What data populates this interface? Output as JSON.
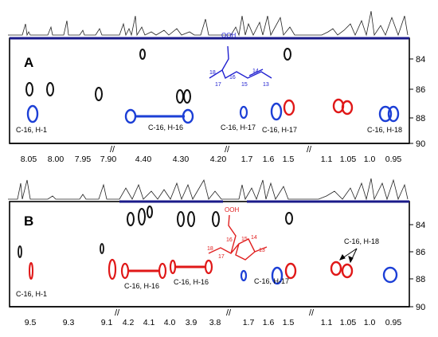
{
  "panels": [
    {
      "id": "A",
      "panel_letter": "A",
      "x_tick_labels": [
        "8.05",
        "8.00",
        "7.95",
        "7.90",
        "4.40",
        "4.30",
        "4.20",
        "1.7",
        "1.6",
        "1.5",
        "1.1",
        "1.05",
        "1.0",
        "0.95"
      ],
      "y_tick_labels": [
        "84",
        "86",
        "88",
        "90"
      ],
      "annotations": [
        "C-16, H-1",
        "C-16, H-16",
        "C-16, H-17",
        "C-16, H-17",
        "C-16, H-18"
      ],
      "structure_labels": [
        "OOH",
        "18",
        "17",
        "16",
        "15",
        "14",
        "13"
      ],
      "structure_color": "#2020d0"
    },
    {
      "id": "B",
      "panel_letter": "B",
      "x_tick_labels": [
        "9.5",
        "9.3",
        "9.1",
        "4.2",
        "4.1",
        "4.0",
        "3.9",
        "3.8",
        "1.7",
        "1.6",
        "1.5",
        "1.1",
        "1.05",
        "1.0",
        "0.95"
      ],
      "y_tick_labels": [
        "84",
        "86",
        "88",
        "90"
      ],
      "annotations": [
        "C-16, H-1",
        "C-16, H-16",
        "C-16, H-16",
        "C-16, H-17",
        "C-16, H-18"
      ],
      "structure_labels": [
        "OOH",
        "18",
        "17",
        "16",
        "15",
        "14",
        "13"
      ],
      "structure_color": "#e02020"
    }
  ],
  "colors": {
    "black": "#111111",
    "blue": "#1c3fd6",
    "red": "#e01818"
  }
}
